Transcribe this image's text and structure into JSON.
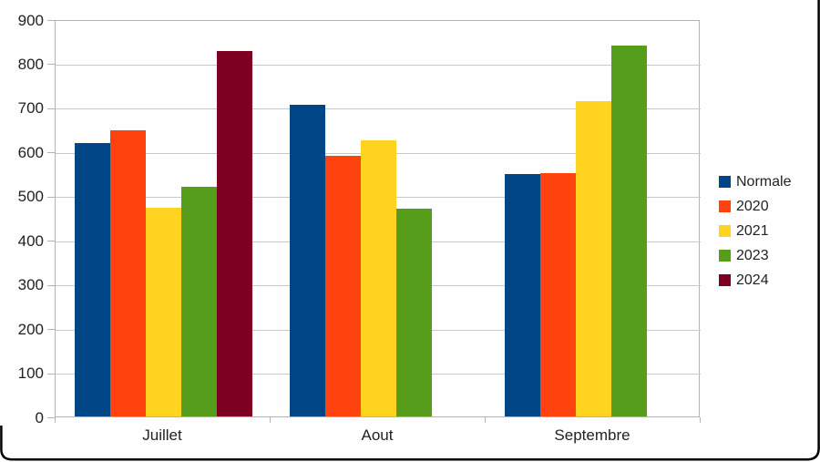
{
  "chart_data": {
    "type": "bar",
    "title": "",
    "xlabel": "",
    "ylabel": "",
    "categories": [
      "Juillet",
      "Aout",
      "Septembre"
    ],
    "series": [
      {
        "name": "Normale",
        "color": "#004586",
        "values": [
          620,
          705,
          550
        ]
      },
      {
        "name": "2020",
        "color": "#FF420E",
        "values": [
          648,
          590,
          552
        ]
      },
      {
        "name": "2021",
        "color": "#FFD320",
        "values": [
          472,
          625,
          715
        ]
      },
      {
        "name": "2023",
        "color": "#579D1C",
        "values": [
          520,
          470,
          840
        ]
      },
      {
        "name": "2024",
        "color": "#7E0021",
        "values": [
          828,
          null,
          null
        ]
      }
    ],
    "ylim": [
      0,
      900
    ],
    "ytick_step": 100,
    "y_tick_labels": [
      "0",
      "100",
      "200",
      "300",
      "400",
      "500",
      "600",
      "700",
      "800",
      "900"
    ],
    "grid": true,
    "legend_position": "right",
    "legend_entries": [
      "Normale",
      "2020",
      "2021",
      "2023",
      "2024"
    ]
  },
  "colors": {
    "gridline": "#c8c8c8",
    "axis": "#b3b3b3",
    "text": "#222222",
    "background": "#ffffff",
    "frame_border": "#000000"
  }
}
